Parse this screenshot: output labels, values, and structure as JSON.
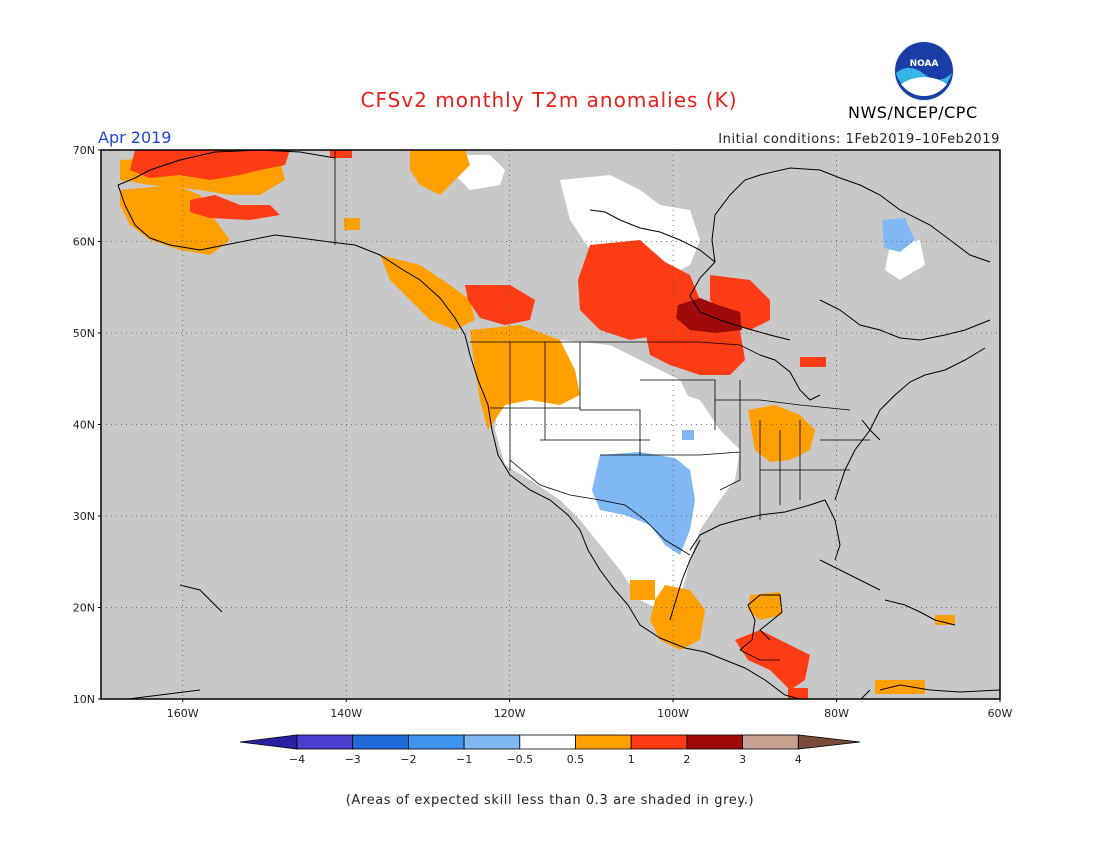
{
  "title": "CFSv2 monthly T2m anomalies (K)",
  "month": "Apr 2019",
  "initial_conditions": "Initial conditions: 1Feb2019–10Feb2019",
  "agency": "NWS/NCEP/CPC",
  "logo_text": "NOAA",
  "footnote": "(Areas of expected skill less than 0.3 are shaded in grey.)",
  "map": {
    "lon_range": [
      -170,
      -60
    ],
    "lat_range": [
      10,
      70
    ],
    "lat_ticks": [
      {
        "value": 70,
        "label": "70N"
      },
      {
        "value": 60,
        "label": "60N"
      },
      {
        "value": 50,
        "label": "50N"
      },
      {
        "value": 40,
        "label": "40N"
      },
      {
        "value": 30,
        "label": "30N"
      },
      {
        "value": 20,
        "label": "20N"
      },
      {
        "value": 10,
        "label": "10N"
      }
    ],
    "lon_ticks": [
      {
        "value": -160,
        "label": "160W"
      },
      {
        "value": -140,
        "label": "140W"
      },
      {
        "value": -120,
        "label": "120W"
      },
      {
        "value": -100,
        "label": "100W"
      },
      {
        "value": -80,
        "label": "80W"
      },
      {
        "value": -60,
        "label": "60W"
      }
    ],
    "background_color": "#c8c8c8",
    "grid": "dotted"
  },
  "colorbar": {
    "labels": [
      "−4",
      "−3",
      "−2",
      "−1",
      "−0.5",
      "0.5",
      "1",
      "2",
      "3",
      "4"
    ],
    "colors": [
      "#2a1fa0",
      "#4b3fd0",
      "#1f6ad8",
      "#3f93ee",
      "#7fb8f5",
      "#ffffff",
      "#ffa000",
      "#ff3c14",
      "#a00a0a",
      "#c8a090",
      "#7a4a3a"
    ]
  },
  "anomaly_regions": [
    {
      "category": "1 to 2",
      "color": "#ff3c14",
      "region": "Northern Alaska"
    },
    {
      "category": "0.5 to 1",
      "color": "#ffa000",
      "region": "Southwest Alaska"
    },
    {
      "category": "0.5 to 1",
      "color": "#ffa000",
      "region": "Pacific Northwest"
    },
    {
      "category": "1 to 2",
      "color": "#ff3c14",
      "region": "Central Canada"
    },
    {
      "category": "2 to 3",
      "color": "#a00a0a",
      "region": "Northwestern Ontario"
    },
    {
      "category": "1 to 2",
      "color": "#ff3c14",
      "region": "Upper Midwest"
    },
    {
      "category": "-1 to -0.5",
      "color": "#7fb8f5",
      "region": "Southern Plains"
    },
    {
      "category": "0.5 to 1",
      "color": "#ffa000",
      "region": "Ohio Valley"
    },
    {
      "category": "1 to 2",
      "color": "#ff3c14",
      "region": "Central America"
    },
    {
      "category": "-0.5 to 0.5",
      "color": "#ffffff",
      "region": "Western US and Mexico"
    },
    {
      "category": "-1 to -0.5",
      "color": "#7fb8f5",
      "region": "Northern Quebec"
    }
  ]
}
